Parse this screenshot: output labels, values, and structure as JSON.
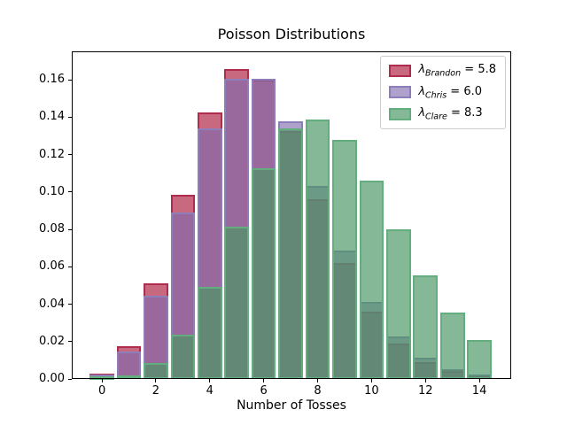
{
  "chart_data": {
    "type": "bar",
    "title": "Poisson Distributions",
    "xlabel": "Number of Tosses",
    "ylabel": "",
    "x": [
      0,
      1,
      2,
      3,
      4,
      5,
      6,
      7,
      8,
      9,
      10,
      11,
      12,
      13,
      14
    ],
    "xticks": [
      0,
      2,
      4,
      6,
      8,
      10,
      12,
      14
    ],
    "yticks": [
      0.0,
      0.02,
      0.04,
      0.06,
      0.08,
      0.1,
      0.12,
      0.14,
      0.16
    ],
    "ytick_labels": [
      "0.00",
      "0.02",
      "0.04",
      "0.06",
      "0.08",
      "0.10",
      "0.12",
      "0.14",
      "0.16"
    ],
    "xlim": [
      -1.12,
      15.18
    ],
    "ylim": [
      0,
      0.1752
    ],
    "bar_width_fraction": 0.91,
    "grid": false,
    "legend_position": "upper right",
    "legend_labels": [
      "λ_Brandon = 5.8",
      "λ_Chris = 6.0",
      "λ_Clare = 8.3"
    ],
    "series": [
      {
        "name": "Brandon",
        "lambda": "5.8",
        "edge_color": "#B02C4C",
        "fill_color": "rgba(176,42,74,0.70)",
        "values": [
          0.00303,
          0.01756,
          0.05092,
          0.09845,
          0.14276,
          0.1656,
          0.16008,
          0.13264,
          0.09616,
          0.06197,
          0.03594,
          0.01895,
          0.00916,
          0.00409,
          0.00169
        ]
      },
      {
        "name": "Chris",
        "lambda": "6.0",
        "edge_color": "#8D7EBA",
        "fill_color": "rgba(125,105,175,0.62)",
        "values": [
          0.00248,
          0.01487,
          0.04462,
          0.08924,
          0.13385,
          0.16062,
          0.16062,
          0.13768,
          0.10326,
          0.06884,
          0.0413,
          0.02253,
          0.01126,
          0.0052,
          0.00223
        ]
      },
      {
        "name": "Clare",
        "lambda": "8.3",
        "edge_color": "#63AD7E",
        "fill_color": "rgba(75,150,100,0.68)",
        "values": [
          0.00025,
          0.00206,
          0.00856,
          0.02368,
          0.04914,
          0.08158,
          0.11285,
          0.13378,
          0.1388,
          0.12801,
          0.10625,
          0.08017,
          0.05545,
          0.0354,
          0.02099
        ]
      }
    ]
  }
}
